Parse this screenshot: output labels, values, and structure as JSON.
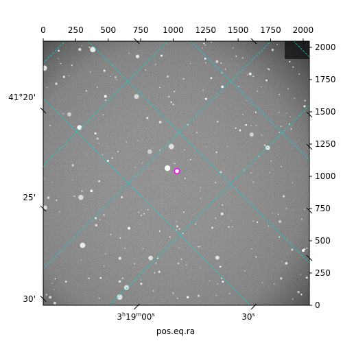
{
  "chart_data": {
    "type": "image",
    "xlabel": "pos.eq.ra",
    "ylabel": "",
    "x_pixel_axis": {
      "range": [
        0,
        2048
      ],
      "ticks": [
        0,
        250,
        500,
        750,
        1000,
        1250,
        1500,
        1750,
        2000
      ]
    },
    "y_pixel_axis": {
      "range": [
        0,
        2048
      ],
      "ticks": [
        0,
        250,
        500,
        750,
        1000,
        1250,
        1500,
        1750,
        2000
      ]
    },
    "ra_ticks": [
      {
        "label": "3h19m00s",
        "x": 720,
        "pre": "3",
        "h": "h",
        "m_val": "19",
        "m": "m",
        "s_val": "00",
        "s": "s"
      },
      {
        "label": "30s",
        "x": 1620,
        "pre": "30",
        "s": "s"
      }
    ],
    "dec_ticks": [
      {
        "label": "41°20'",
        "y": 1510
      },
      {
        "label": "25'",
        "y": 750
      },
      {
        "label": "30'",
        "y": 50
      }
    ],
    "marker": {
      "x": 1030,
      "y": 1040,
      "shape": "circle",
      "color": "#ff00ff"
    },
    "grid_color": "#00d7d7",
    "grid": true
  }
}
